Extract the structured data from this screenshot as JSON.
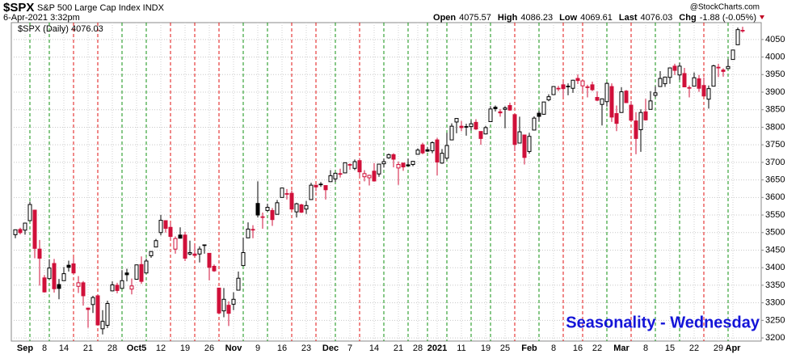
{
  "chart_data": {
    "type": "candlestick",
    "title": "$SPX",
    "subtitle": "S&P 500 Large Cap Index INDX",
    "timestamp": "6-Apr-2021 3:32pm",
    "quote": [
      {
        "label": "Open",
        "value": 4075.57
      },
      {
        "label": "High",
        "value": 4086.23
      },
      {
        "label": "Low",
        "value": 4069.61
      },
      {
        "label": "Last",
        "value": 4076.03
      },
      {
        "label": "Chg",
        "value": "-1.88 (-0.05%)"
      }
    ],
    "watermark": "@StockCharts.com",
    "annotation": "Seasonality - Wednesday",
    "categories": [
      "2020-08-28",
      "2020-08-31",
      "2020-09-01",
      "2020-09-02",
      "2020-09-03",
      "2020-09-04",
      "2020-09-08",
      "2020-09-09",
      "2020-09-10",
      "2020-09-11",
      "2020-09-14",
      "2020-09-15",
      "2020-09-16",
      "2020-09-17",
      "2020-09-18",
      "2020-09-21",
      "2020-09-22",
      "2020-09-23",
      "2020-09-24",
      "2020-09-25",
      "2020-09-28",
      "2020-09-29",
      "2020-09-30",
      "2020-10-01",
      "2020-10-02",
      "2020-10-05",
      "2020-10-06",
      "2020-10-07",
      "2020-10-08",
      "2020-10-09",
      "2020-10-12",
      "2020-10-13",
      "2020-10-14",
      "2020-10-15",
      "2020-10-16",
      "2020-10-19",
      "2020-10-20",
      "2020-10-21",
      "2020-10-22",
      "2020-10-23",
      "2020-10-26",
      "2020-10-27",
      "2020-10-28",
      "2020-10-29",
      "2020-10-30",
      "2020-11-02",
      "2020-11-03",
      "2020-11-04",
      "2020-11-05",
      "2020-11-06",
      "2020-11-09",
      "2020-11-10",
      "2020-11-11",
      "2020-11-12",
      "2020-11-13",
      "2020-11-16",
      "2020-11-17",
      "2020-11-18",
      "2020-11-19",
      "2020-11-20",
      "2020-11-23",
      "2020-11-24",
      "2020-11-25",
      "2020-11-27",
      "2020-11-30",
      "2020-12-01",
      "2020-12-02",
      "2020-12-03",
      "2020-12-04",
      "2020-12-07",
      "2020-12-08",
      "2020-12-09",
      "2020-12-10",
      "2020-12-11",
      "2020-12-14",
      "2020-12-15",
      "2020-12-16",
      "2020-12-17",
      "2020-12-18",
      "2020-12-21",
      "2020-12-22",
      "2020-12-23",
      "2020-12-24",
      "2020-12-28",
      "2020-12-29",
      "2020-12-30",
      "2020-12-31",
      "2021-01-04",
      "2021-01-05",
      "2021-01-06",
      "2021-01-07",
      "2021-01-08",
      "2021-01-11",
      "2021-01-12",
      "2021-01-13",
      "2021-01-14",
      "2021-01-15",
      "2021-01-19",
      "2021-01-20",
      "2021-01-21",
      "2021-01-22",
      "2021-01-25",
      "2021-01-26",
      "2021-01-27",
      "2021-01-28",
      "2021-01-29",
      "2021-02-01",
      "2021-02-02",
      "2021-02-03",
      "2021-02-04",
      "2021-02-05",
      "2021-02-08",
      "2021-02-09",
      "2021-02-10",
      "2021-02-11",
      "2021-02-12",
      "2021-02-16",
      "2021-02-17",
      "2021-02-18",
      "2021-02-19",
      "2021-02-22",
      "2021-02-23",
      "2021-02-24",
      "2021-02-25",
      "2021-02-26",
      "2021-03-01",
      "2021-03-02",
      "2021-03-03",
      "2021-03-04",
      "2021-03-05",
      "2021-03-08",
      "2021-03-09",
      "2021-03-10",
      "2021-03-11",
      "2021-03-12",
      "2021-03-15",
      "2021-03-16",
      "2021-03-17",
      "2021-03-18",
      "2021-03-19",
      "2021-03-22",
      "2021-03-23",
      "2021-03-24",
      "2021-03-25",
      "2021-03-26",
      "2021-03-29",
      "2021-03-30",
      "2021-03-31",
      "2021-04-01",
      "2021-04-05",
      "2021-04-06"
    ],
    "series": [
      {
        "name": "$SPX (Daily) 4076.03",
        "open": [
          3494,
          3509,
          3507,
          3534,
          3564,
          3453,
          3371,
          3369,
          3412,
          3352,
          3363,
          3407,
          3411,
          3347,
          3357,
          3285,
          3295,
          3320,
          3226,
          3236,
          3334,
          3350,
          3341,
          3385,
          3339,
          3367,
          3409,
          3385,
          3434,
          3459,
          3500,
          3534,
          3515,
          3453,
          3493,
          3493,
          3439,
          3439,
          3439,
          3464,
          3441,
          3404,
          3342,
          3277,
          3293,
          3296,
          3336,
          3406,
          3485,
          3508,
          3583,
          3544,
          3563,
          3563,
          3552,
          3600,
          3611,
          3612,
          3559,
          3579,
          3567,
          3594,
          3635,
          3638,
          3634,
          3645,
          3653,
          3668,
          3670,
          3694,
          3683,
          3705,
          3659,
          3656,
          3675,
          3667,
          3696,
          3713,
          3722,
          3684,
          3698,
          3693,
          3694,
          3723,
          3750,
          3736,
          3733,
          3764,
          3698,
          3712,
          3764,
          3815,
          3803,
          3802,
          3802,
          3814,
          3788,
          3781,
          3816,
          3857,
          3844,
          3851,
          3862,
          3836,
          3755,
          3778,
          3731,
          3792,
          3840,
          3837,
          3878,
          3893,
          3910,
          3921,
          3916,
          3911,
          3939,
          3918,
          3915,
          3921,
          3885,
          3865,
          3873,
          3916,
          3839,
          3842,
          3903,
          3863,
          3818,
          3793,
          3844,
          3851,
          3891,
          3916,
          3924,
          3942,
          3974,
          3949,
          3953,
          3913,
          3917,
          3938,
          3919,
          3880,
          3917,
          3969,
          3963,
          3967,
          3993,
          4035,
          4075.57
        ],
        "high": [
          3509,
          3514,
          3528,
          3588,
          3564,
          3479,
          3379,
          3424,
          3425,
          3368,
          3402,
          3420,
          3428,
          3376,
          3362,
          3286,
          3320,
          3324,
          3279,
          3306,
          3361,
          3357,
          3393,
          3397,
          3369,
          3409,
          3432,
          3426,
          3447,
          3482,
          3550,
          3535,
          3528,
          3489,
          3515,
          3502,
          3477,
          3465,
          3461,
          3466,
          3441,
          3409,
          3342,
          3342,
          3304,
          3330,
          3389,
          3486,
          3529,
          3521,
          3646,
          3557,
          3582,
          3570,
          3593,
          3628,
          3624,
          3620,
          3585,
          3582,
          3590,
          3642,
          3636,
          3644,
          3634,
          3678,
          3670,
          3682,
          3699,
          3697,
          3708,
          3712,
          3678,
          3665,
          3698,
          3695,
          3711,
          3725,
          3726,
          3702,
          3698,
          3711,
          3703,
          3740,
          3756,
          3744,
          3760,
          3770,
          3738,
          3784,
          3811,
          3826,
          3818,
          3810,
          3820,
          3823,
          3788,
          3804,
          3860,
          3862,
          3852,
          3860,
          3870,
          3836,
          3830,
          3778,
          3784,
          3831,
          3847,
          3872,
          3894,
          3916,
          3918,
          3931,
          3925,
          3935,
          3950,
          3933,
          3921,
          3930,
          3902,
          3882,
          3928,
          3925,
          3862,
          3914,
          3906,
          3875,
          3843,
          3851,
          3881,
          3903,
          3917,
          3960,
          3944,
          3970,
          3981,
          3983,
          3969,
          3919,
          3956,
          3949,
          3942,
          3919,
          3978,
          3981,
          3968,
          3994,
          4021,
          4084,
          4086.23
        ],
        "low": [
          3484,
          3495,
          3494,
          3534,
          3427,
          3349,
          3329,
          3367,
          3329,
          3310,
          3363,
          3389,
          3384,
          3328,
          3292,
          3229,
          3271,
          3237,
          3210,
          3228,
          3333,
          3327,
          3340,
          3361,
          3324,
          3367,
          3354,
          3385,
          3428,
          3458,
          3492,
          3500,
          3479,
          3440,
          3483,
          3419,
          3435,
          3433,
          3415,
          3440,
          3364,
          3388,
          3268,
          3259,
          3234,
          3279,
          3336,
          3405,
          3485,
          3484,
          3543,
          3511,
          3560,
          3519,
          3552,
          3600,
          3594,
          3567,
          3543,
          3556,
          3553,
          3594,
          3618,
          3630,
          3594,
          3645,
          3644,
          3657,
          3670,
          3679,
          3678,
          3660,
          3646,
          3634,
          3645,
          3659,
          3685,
          3710,
          3686,
          3636,
          3676,
          3689,
          3689,
          3723,
          3723,
          3730,
          3726,
          3663,
          3696,
          3706,
          3764,
          3783,
          3789,
          3776,
          3791,
          3792,
          3750,
          3780,
          3816,
          3845,
          3830,
          3797,
          3847,
          3732,
          3755,
          3694,
          3725,
          3792,
          3817,
          3836,
          3874,
          3892,
          3903,
          3885,
          3891,
          3898,
          3923,
          3901,
          3885,
          3903,
          3874,
          3805,
          3859,
          3815,
          3789,
          3842,
          3869,
          3819,
          3723,
          3730,
          3819,
          3851,
          3885,
          3916,
          3915,
          3924,
          3949,
          3935,
          3916,
          3885,
          3917,
          3901,
          3889,
          3853,
          3917,
          3943,
          3944,
          3966,
          3993,
          4035,
          4069.61
        ],
        "close": [
          3508,
          3500,
          3527,
          3580,
          3455,
          3427,
          3331,
          3399,
          3340,
          3341,
          3383,
          3401,
          3385,
          3357,
          3320,
          3281,
          3315,
          3237,
          3247,
          3298,
          3351,
          3335,
          3363,
          3380,
          3348,
          3408,
          3361,
          3419,
          3446,
          3477,
          3535,
          3512,
          3489,
          3483,
          3484,
          3427,
          3443,
          3435,
          3453,
          3465,
          3401,
          3391,
          3271,
          3310,
          3270,
          3310,
          3370,
          3443,
          3510,
          3509,
          3550,
          3545,
          3572,
          3537,
          3585,
          3627,
          3610,
          3567,
          3582,
          3558,
          3577,
          3635,
          3630,
          3638,
          3622,
          3662,
          3669,
          3666,
          3699,
          3692,
          3702,
          3673,
          3668,
          3663,
          3647,
          3695,
          3702,
          3722,
          3709,
          3694,
          3687,
          3690,
          3703,
          3735,
          3727,
          3732,
          3756,
          3701,
          3726,
          3748,
          3803,
          3825,
          3799,
          3801,
          3810,
          3795,
          3768,
          3799,
          3852,
          3853,
          3841,
          3855,
          3849,
          3751,
          3787,
          3714,
          3774,
          3826,
          3831,
          3872,
          3887,
          3916,
          3911,
          3910,
          3917,
          3934,
          3933,
          3932,
          3914,
          3907,
          3877,
          3881,
          3925,
          3829,
          3811,
          3901,
          3870,
          3820,
          3768,
          3842,
          3821,
          3875,
          3898,
          3939,
          3943,
          3969,
          3962,
          3974,
          3915,
          3913,
          3941,
          3911,
          3889,
          3910,
          3975,
          3971,
          3959,
          3973,
          4020,
          4078,
          4076.03
        ]
      }
    ],
    "up_color": "#000000",
    "down_color": "#d0103a",
    "wednesday_up_color": "#109010",
    "wednesday_down_color": "#e01010",
    "grid": true,
    "ylim": [
      3191,
      4098
    ],
    "yticks": [
      3200,
      3250,
      3300,
      3350,
      3400,
      3450,
      3500,
      3550,
      3600,
      3650,
      3700,
      3750,
      3800,
      3850,
      3900,
      3950,
      4000,
      4050
    ],
    "xticks": [
      {
        "value": "2020-09-01",
        "label": "Sep"
      },
      {
        "value": "2020-09-08",
        "label": "8"
      },
      {
        "value": "2020-09-14",
        "label": "14"
      },
      {
        "value": "2020-09-21",
        "label": "21"
      },
      {
        "value": "2020-09-28",
        "label": "28"
      },
      {
        "value": "2020-10-05",
        "label": "Oct5"
      },
      {
        "value": "2020-10-12",
        "label": "12"
      },
      {
        "value": "2020-10-19",
        "label": "19"
      },
      {
        "value": "2020-10-26",
        "label": "26"
      },
      {
        "value": "2020-11-02",
        "label": "Nov"
      },
      {
        "value": "2020-11-09",
        "label": "9"
      },
      {
        "value": "2020-11-16",
        "label": "16"
      },
      {
        "value": "2020-11-23",
        "label": "23"
      },
      {
        "value": "2020-12-01",
        "label": "Dec"
      },
      {
        "value": "2020-12-07",
        "label": "7"
      },
      {
        "value": "2020-12-14",
        "label": "14"
      },
      {
        "value": "2020-12-21",
        "label": "21"
      },
      {
        "value": "2020-12-28",
        "label": "28"
      },
      {
        "value": "2021-01-04",
        "label": "2021"
      },
      {
        "value": "2021-01-11",
        "label": "11"
      },
      {
        "value": "2021-01-19",
        "label": "19"
      },
      {
        "value": "2021-01-25",
        "label": "25"
      },
      {
        "value": "2021-02-01",
        "label": "Feb"
      },
      {
        "value": "2021-02-08",
        "label": "8"
      },
      {
        "value": "2021-02-16",
        "label": "16"
      },
      {
        "value": "2021-02-22",
        "label": "22"
      },
      {
        "value": "2021-03-01",
        "label": "Mar"
      },
      {
        "value": "2021-03-08",
        "label": "8"
      },
      {
        "value": "2021-03-15",
        "label": "15"
      },
      {
        "value": "2021-03-22",
        "label": "22"
      },
      {
        "value": "2021-03-29",
        "label": "29"
      },
      {
        "value": "2021-04-01",
        "label": "Apr"
      }
    ]
  }
}
